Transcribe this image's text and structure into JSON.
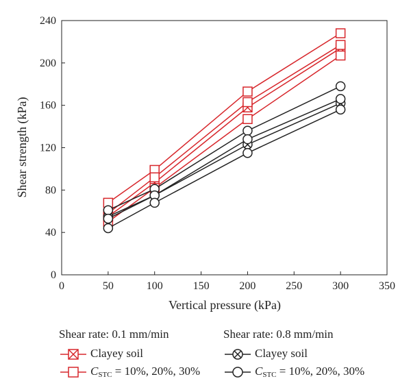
{
  "chart_data": {
    "type": "line",
    "xlabel": "Vertical pressure (kPa)",
    "ylabel": "Shear strength (kPa)",
    "xlim": [
      0,
      350
    ],
    "ylim": [
      0,
      240
    ],
    "xticks": [
      0,
      50,
      100,
      150,
      200,
      250,
      300,
      350
    ],
    "yticks": [
      0,
      40,
      80,
      120,
      160,
      200,
      240
    ],
    "grid": false,
    "legend_position": "bottom",
    "x": [
      50,
      100,
      200,
      300
    ],
    "series": [
      {
        "group": "Shear rate: 0.1 mm/min",
        "name": "Clayey soil",
        "marker": "boxed-x",
        "color": "#d7262b",
        "values": [
          55,
          87,
          158,
          214
        ]
      },
      {
        "group": "Shear rate: 0.1 mm/min",
        "name": "C_STC = 10%, 20%, 30%",
        "marker": "square",
        "color": "#d7262b",
        "values": [
          68,
          99,
          173,
          228
        ]
      },
      {
        "group": "Shear rate: 0.1 mm/min",
        "name": "C_STC = 10%, 20%, 30%",
        "marker": "square",
        "color": "#d7262b",
        "values": [
          58,
          92,
          163,
          217
        ]
      },
      {
        "group": "Shear rate: 0.1 mm/min",
        "name": "C_STC = 10%, 20%, 30%",
        "marker": "square",
        "color": "#d7262b",
        "values": [
          50,
          82,
          147,
          207
        ]
      },
      {
        "group": "Shear rate: 0.8 mm/min",
        "name": "Clayey soil",
        "marker": "circle-x",
        "color": "#222222",
        "values": [
          55,
          75,
          123,
          162
        ]
      },
      {
        "group": "Shear rate: 0.8 mm/min",
        "name": "C_STC = 10%, 20%, 30%",
        "marker": "circle",
        "color": "#222222",
        "values": [
          61,
          81,
          136,
          178
        ]
      },
      {
        "group": "Shear rate: 0.8 mm/min",
        "name": "C_STC = 10%, 20%, 30%",
        "marker": "circle",
        "color": "#222222",
        "values": [
          53,
          75,
          128,
          166
        ]
      },
      {
        "group": "Shear rate: 0.8 mm/min",
        "name": "C_STC = 10%, 20%, 30%",
        "marker": "circle",
        "color": "#222222",
        "values": [
          44,
          68,
          115,
          156
        ]
      }
    ]
  },
  "legend": {
    "group1": {
      "title": "Shear rate: 0.1 mm/min",
      "item1": "Clayey soil",
      "item2_prefix": "C",
      "item2_sub": "STC",
      "item2_suffix": " = 10%, 20%, 30%"
    },
    "group2": {
      "title": "Shear rate: 0.8 mm/min",
      "item1": "Clayey soil",
      "item2_prefix": "C",
      "item2_sub": "STC",
      "item2_suffix": " = 10%, 20%, 30%"
    }
  },
  "colors": {
    "red": "#d7262b",
    "black": "#222222"
  }
}
